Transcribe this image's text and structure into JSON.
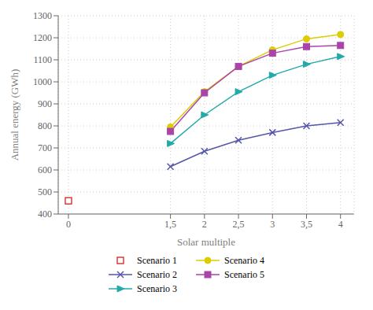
{
  "chart_data": {
    "type": "line",
    "xlabel": "Solar multiple",
    "ylabel": "Annual energy (GWh)",
    "xlim": [
      -0.15,
      4.2
    ],
    "ylim": [
      400,
      1300
    ],
    "xticks": [
      0,
      {
        "value": 1.5,
        "label": "1,5"
      },
      2,
      {
        "value": 2.5,
        "label": "2,5"
      },
      3,
      {
        "value": 3.5,
        "label": "3,5"
      },
      4
    ],
    "yticks": [
      400,
      500,
      600,
      700,
      800,
      900,
      1000,
      1100,
      1200,
      1300
    ],
    "grid": true,
    "series": [
      {
        "name": "Scenario 1",
        "color": "#cc2222",
        "marker": "open_square",
        "line_style": "none",
        "x": [
          0
        ],
        "values": [
          460
        ]
      },
      {
        "name": "Scenario 2",
        "color": "#5555aa",
        "marker": "x",
        "line_style": "solid",
        "x": [
          1.5,
          2,
          2.5,
          3,
          3.5,
          4
        ],
        "values": [
          615,
          685,
          735,
          770,
          800,
          815
        ]
      },
      {
        "name": "Scenario 3",
        "color": "#22aaaa",
        "marker": "triangle_right",
        "line_style": "solid",
        "x": [
          1.5,
          2,
          2.5,
          3,
          3.5,
          4
        ],
        "values": [
          720,
          850,
          955,
          1030,
          1080,
          1115
        ]
      },
      {
        "name": "Scenario 4",
        "color": "#ddcc00",
        "marker": "circle",
        "line_style": "solid",
        "x": [
          1.5,
          2,
          2.5,
          3,
          3.5,
          4
        ],
        "values": [
          795,
          955,
          1070,
          1145,
          1195,
          1215
        ]
      },
      {
        "name": "Scenario 5",
        "color": "#aa44aa",
        "marker": "square",
        "line_style": "solid",
        "x": [
          1.5,
          2,
          2.5,
          3,
          3.5,
          4
        ],
        "values": [
          775,
          950,
          1070,
          1130,
          1160,
          1165
        ]
      }
    ]
  }
}
